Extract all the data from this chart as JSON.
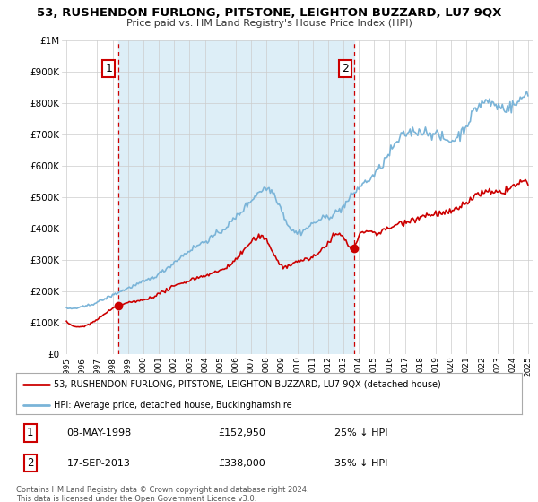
{
  "title": "53, RUSHENDON FURLONG, PITSTONE, LEIGHTON BUZZARD, LU7 9QX",
  "subtitle": "Price paid vs. HM Land Registry's House Price Index (HPI)",
  "ylabel_ticks": [
    "£0",
    "£100K",
    "£200K",
    "£300K",
    "£400K",
    "£500K",
    "£600K",
    "£700K",
    "£800K",
    "£900K",
    "£1M"
  ],
  "ytick_values": [
    0,
    100000,
    200000,
    300000,
    400000,
    500000,
    600000,
    700000,
    800000,
    900000,
    1000000
  ],
  "hpi_color": "#7ab4d8",
  "price_color": "#cc0000",
  "shade_color": "#ddeef7",
  "legend_label_price": "53, RUSHENDON FURLONG, PITSTONE, LEIGHTON BUZZARD, LU7 9QX (detached house)",
  "legend_label_hpi": "HPI: Average price, detached house, Buckinghamshire",
  "sale1_date": "08-MAY-1998",
  "sale1_price": "£152,950",
  "sale1_note": "25% ↓ HPI",
  "sale2_date": "17-SEP-2013",
  "sale2_price": "£338,000",
  "sale2_note": "35% ↓ HPI",
  "footer": "Contains HM Land Registry data © Crown copyright and database right 2024.\nThis data is licensed under the Open Government Licence v3.0.",
  "sale1_year": 1998.35,
  "sale2_year": 2013.71,
  "xlim_start": 1994.7,
  "xlim_end": 2025.3,
  "ylim_max": 1000000,
  "xtick_years": [
    1995,
    1996,
    1997,
    1998,
    1999,
    2000,
    2001,
    2002,
    2003,
    2004,
    2005,
    2006,
    2007,
    2008,
    2009,
    2010,
    2011,
    2012,
    2013,
    2014,
    2015,
    2016,
    2017,
    2018,
    2019,
    2020,
    2021,
    2022,
    2023,
    2024,
    2025
  ],
  "sale1_price_y": 152950,
  "sale2_price_y": 338000
}
